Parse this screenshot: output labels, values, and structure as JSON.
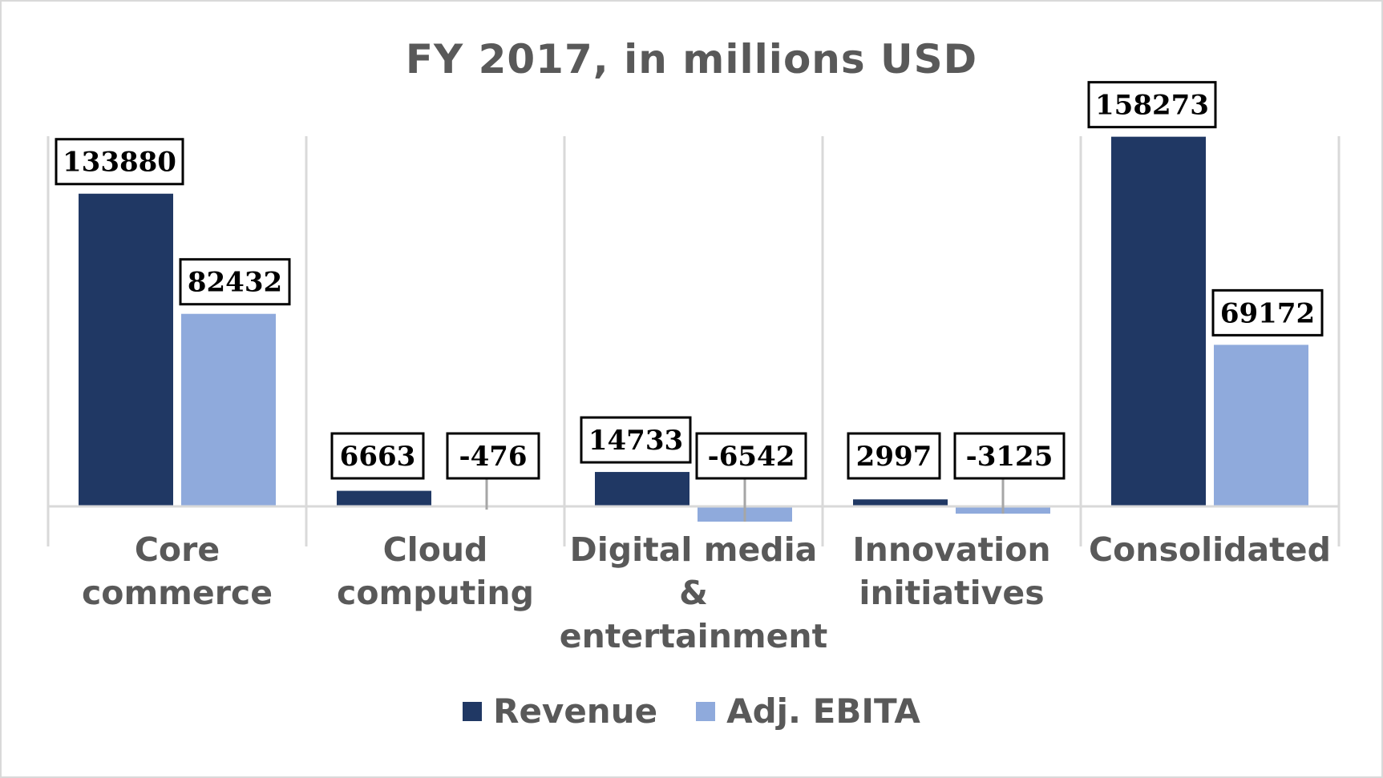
{
  "chart_data": {
    "type": "bar",
    "title": "FY 2017, in millions USD",
    "categories": [
      [
        "Core",
        "commerce"
      ],
      [
        "Cloud",
        "computing"
      ],
      [
        "Digital media",
        "&",
        "entertainment"
      ],
      [
        "Innovation",
        "initiatives"
      ],
      [
        "Consolidated"
      ]
    ],
    "series": [
      {
        "name": "Revenue",
        "color": "#203864",
        "values": [
          133880,
          6663,
          14733,
          2997,
          158273
        ]
      },
      {
        "name": "Adj. EBITA",
        "color": "#8FAADC",
        "values": [
          82432,
          -476,
          -6542,
          -3125,
          69172
        ]
      }
    ],
    "data_labels": [
      [
        "133880",
        "6663",
        "14733",
        "2997",
        "158273"
      ],
      [
        "82432",
        "-476",
        "-6542",
        "-3125",
        "69172"
      ]
    ],
    "gridlines": "vertical category separators",
    "legend_position": "bottom"
  }
}
